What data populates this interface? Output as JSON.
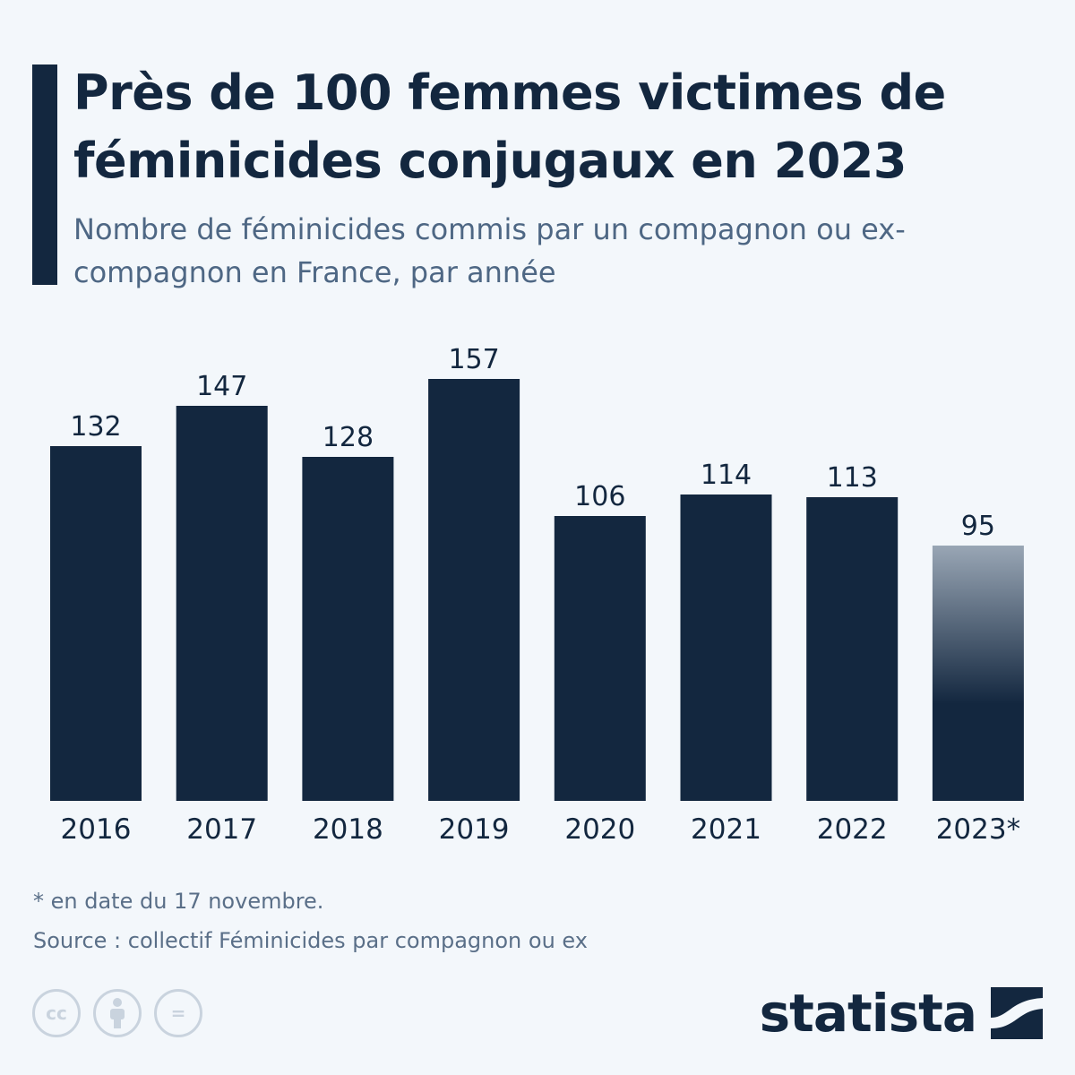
{
  "header": {
    "title": "Près de 100 femmes victimes de féminicides conjugaux en 2023",
    "subtitle": "Nombre de féminicides commis par un compagnon ou ex-compagnon en France, par année"
  },
  "chart_data": {
    "type": "bar",
    "title": "Près de 100 femmes victimes de féminicides conjugaux en 2023",
    "subtitle": "Nombre de féminicides commis par un compagnon ou ex-compagnon en France, par année",
    "categories": [
      "2016",
      "2017",
      "2018",
      "2019",
      "2020",
      "2021",
      "2022",
      "2023*"
    ],
    "values": [
      132,
      147,
      128,
      157,
      106,
      114,
      113,
      95
    ],
    "highlight_partial_last": true,
    "xlabel": "",
    "ylabel": "",
    "ylim": [
      0,
      157
    ],
    "grid": false,
    "legend": "none",
    "data_labels": true
  },
  "footer": {
    "note": "* en date du 17 novembre.",
    "source": "Source : collectif Féminicides par compagnon ou ex",
    "license_icons": [
      "cc-icon",
      "attribution-icon",
      "no-derivatives-icon"
    ],
    "license_labels": [
      "cc",
      "="
    ],
    "brand": "statista"
  },
  "colors": {
    "bar": "#13273f",
    "partial_bar_top": "#99a6b5",
    "background": "#f3f7fb",
    "subtitle": "#4e6784"
  }
}
